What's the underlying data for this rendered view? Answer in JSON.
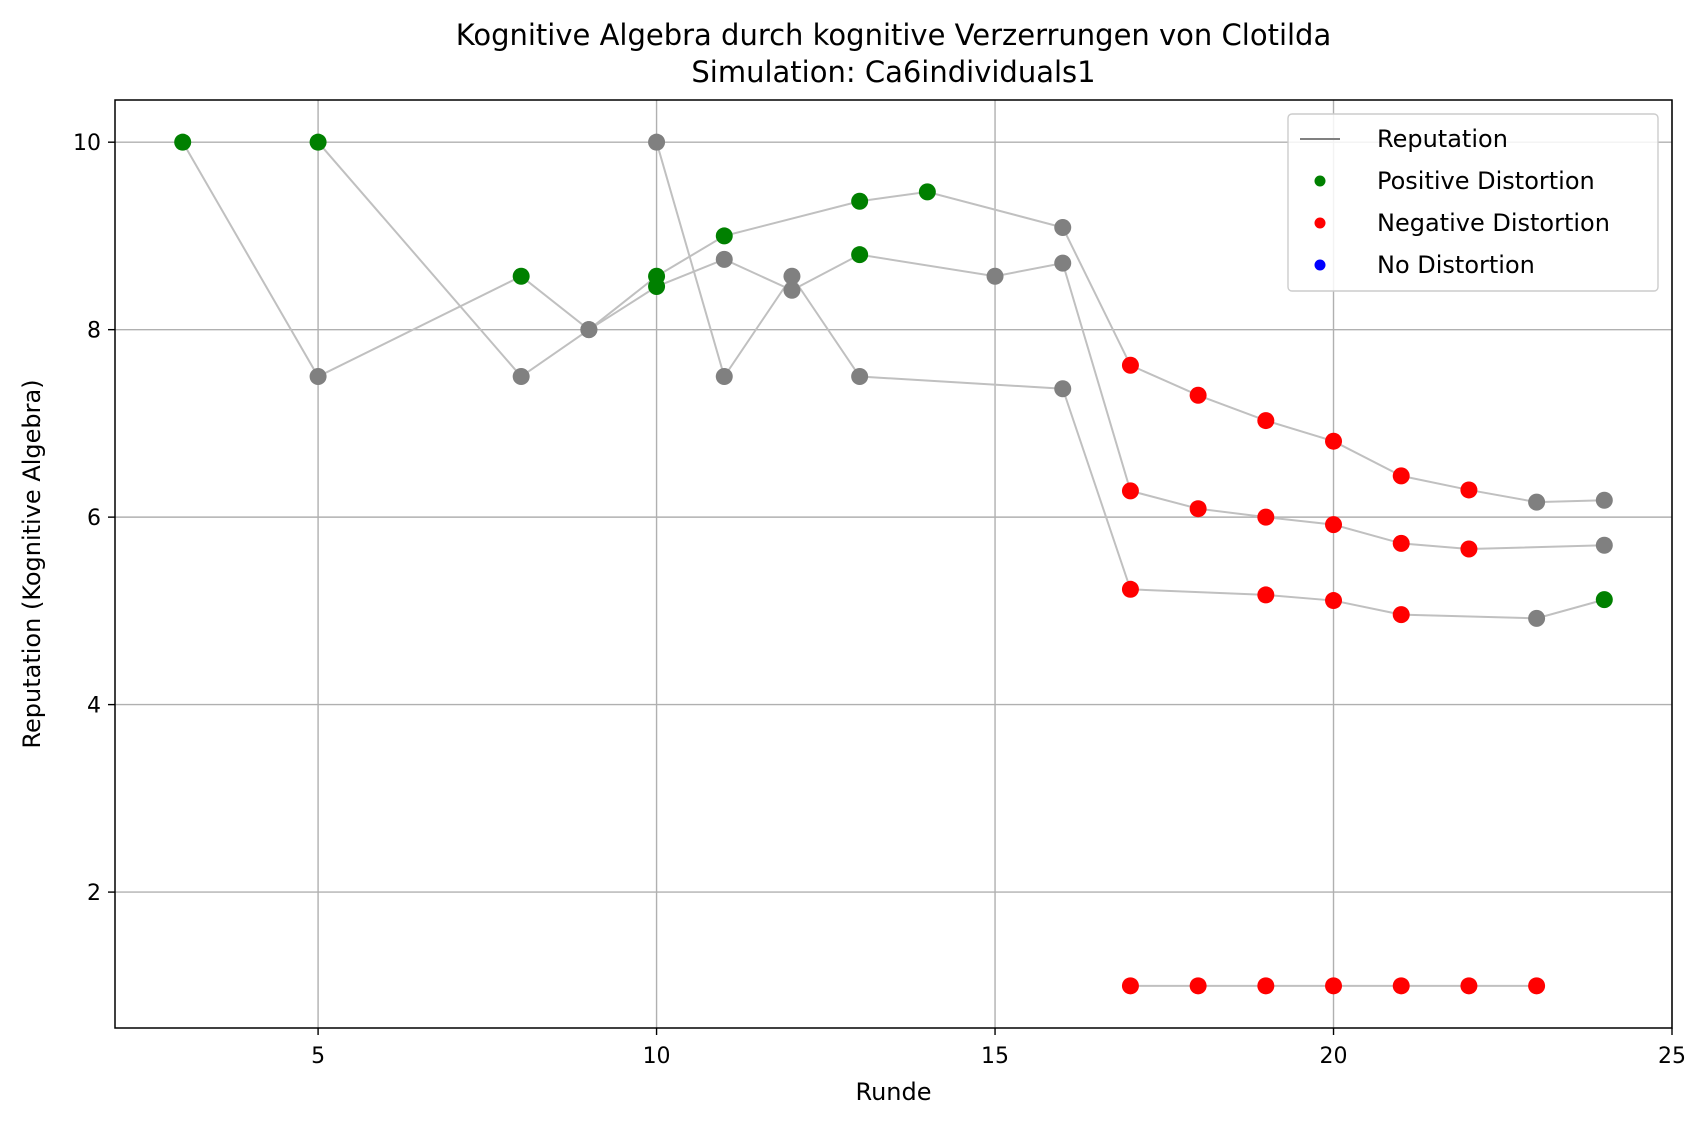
{
  "chart_data": {
    "type": "line",
    "title": "Kognitive Algebra durch kognitive Verzerrungen von Clotilda",
    "subtitle": "Simulation: Ca6individuals1",
    "xlabel": "Runde",
    "ylabel": "Reputation (Kognitive Algebra)",
    "xlim": [
      2,
      25
    ],
    "ylim": [
      0.55,
      10.45
    ],
    "xticks": [
      5,
      10,
      15,
      20,
      25
    ],
    "yticks": [
      2,
      4,
      6,
      8,
      10
    ],
    "grid": true,
    "legend_position": "top-right",
    "legend": [
      {
        "label": "Reputation",
        "kind": "line",
        "color": "#808080"
      },
      {
        "label": "Positive Distortion",
        "kind": "marker",
        "color": "#008000"
      },
      {
        "label": "Negative Distortion",
        "kind": "marker",
        "color": "#ff0000"
      },
      {
        "label": "No Distortion",
        "kind": "marker",
        "color": "#0000ff"
      }
    ],
    "colors": {
      "positive": "#008000",
      "negative": "#ff0000",
      "none": "#808080",
      "line": "#c0c0c0"
    },
    "series": [
      {
        "points": [
          {
            "x": 3,
            "y": 10.0,
            "d": "positive"
          },
          {
            "x": 5,
            "y": 7.5,
            "d": "none"
          },
          {
            "x": 8,
            "y": 8.57,
            "d": "positive"
          },
          {
            "x": 9,
            "y": 8.0,
            "d": "none"
          },
          {
            "x": 10,
            "y": 8.46,
            "d": "positive"
          },
          {
            "x": 11,
            "y": 8.75,
            "d": "none"
          },
          {
            "x": 12,
            "y": 8.42,
            "d": "none"
          },
          {
            "x": 13,
            "y": 8.8,
            "d": "positive"
          },
          {
            "x": 15,
            "y": 8.57,
            "d": "none"
          },
          {
            "x": 16,
            "y": 8.71,
            "d": "none"
          },
          {
            "x": 17,
            "y": 6.28,
            "d": "negative"
          },
          {
            "x": 18,
            "y": 6.09,
            "d": "negative"
          },
          {
            "x": 19,
            "y": 6.0,
            "d": "negative"
          },
          {
            "x": 20,
            "y": 5.92,
            "d": "negative"
          },
          {
            "x": 21,
            "y": 5.72,
            "d": "negative"
          },
          {
            "x": 22,
            "y": 5.66,
            "d": "negative"
          },
          {
            "x": 24,
            "y": 5.7,
            "d": "none"
          }
        ]
      },
      {
        "points": [
          {
            "x": 5,
            "y": 10.0,
            "d": "positive"
          },
          {
            "x": 8,
            "y": 7.5,
            "d": "none"
          },
          {
            "x": 9,
            "y": 8.0,
            "d": "none"
          },
          {
            "x": 10,
            "y": 8.57,
            "d": "positive"
          },
          {
            "x": 11,
            "y": 9.0,
            "d": "positive"
          },
          {
            "x": 13,
            "y": 9.37,
            "d": "positive"
          },
          {
            "x": 14,
            "y": 9.47,
            "d": "positive"
          },
          {
            "x": 16,
            "y": 9.09,
            "d": "none"
          },
          {
            "x": 17,
            "y": 7.62,
            "d": "negative"
          },
          {
            "x": 18,
            "y": 7.3,
            "d": "negative"
          },
          {
            "x": 19,
            "y": 7.03,
            "d": "negative"
          },
          {
            "x": 20,
            "y": 6.81,
            "d": "negative"
          },
          {
            "x": 21,
            "y": 6.44,
            "d": "negative"
          },
          {
            "x": 22,
            "y": 6.29,
            "d": "negative"
          },
          {
            "x": 23,
            "y": 6.16,
            "d": "none"
          },
          {
            "x": 24,
            "y": 6.18,
            "d": "none"
          }
        ]
      },
      {
        "points": [
          {
            "x": 10,
            "y": 10.0,
            "d": "none"
          },
          {
            "x": 11,
            "y": 7.5,
            "d": "none"
          },
          {
            "x": 12,
            "y": 8.57,
            "d": "none"
          },
          {
            "x": 13,
            "y": 7.5,
            "d": "none"
          },
          {
            "x": 16,
            "y": 7.37,
            "d": "none"
          },
          {
            "x": 17,
            "y": 5.23,
            "d": "negative"
          },
          {
            "x": 19,
            "y": 5.17,
            "d": "negative"
          },
          {
            "x": 20,
            "y": 5.11,
            "d": "negative"
          },
          {
            "x": 21,
            "y": 4.96,
            "d": "negative"
          },
          {
            "x": 23,
            "y": 4.92,
            "d": "none"
          },
          {
            "x": 24,
            "y": 5.12,
            "d": "positive"
          }
        ]
      },
      {
        "points": [
          {
            "x": 17,
            "y": 1.0,
            "d": "negative"
          },
          {
            "x": 18,
            "y": 1.0,
            "d": "negative"
          },
          {
            "x": 19,
            "y": 1.0,
            "d": "negative"
          },
          {
            "x": 20,
            "y": 1.0,
            "d": "negative"
          },
          {
            "x": 21,
            "y": 1.0,
            "d": "negative"
          },
          {
            "x": 22,
            "y": 1.0,
            "d": "negative"
          },
          {
            "x": 23,
            "y": 1.0,
            "d": "negative"
          }
        ]
      }
    ]
  }
}
